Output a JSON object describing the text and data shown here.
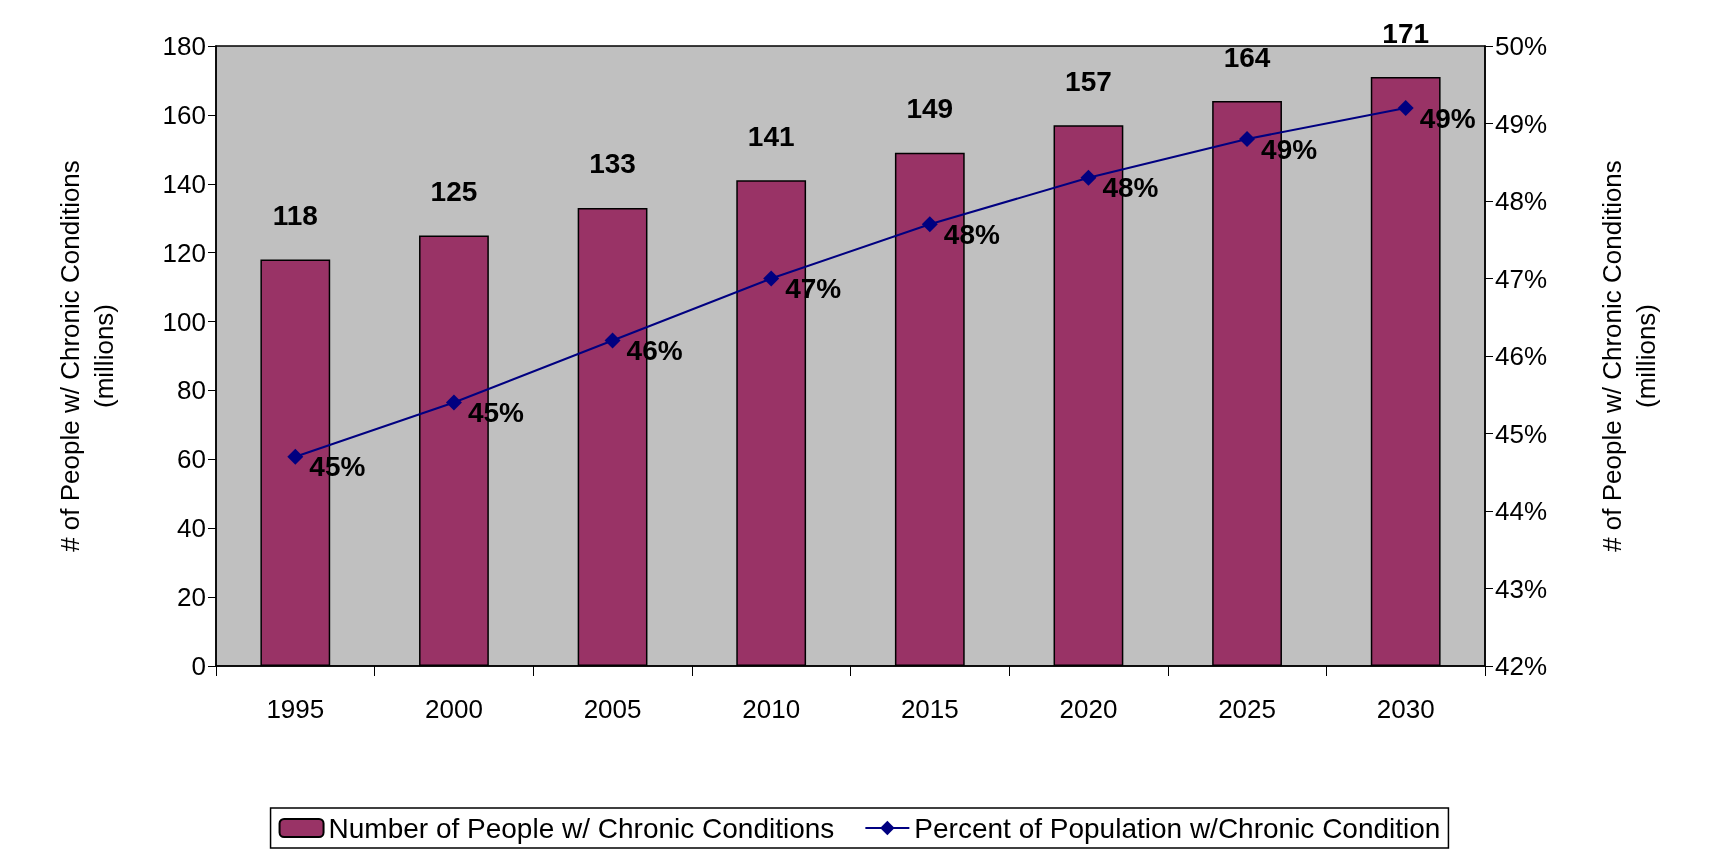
{
  "chart_data": {
    "type": "bar",
    "ylabel": "# of People w/ Chronic Conditions\n(millions)",
    "y2label": "# of People w/ Chronic Conditions\n(millions)",
    "categories": [
      "1995",
      "2000",
      "2005",
      "2010",
      "2015",
      "2020",
      "2025",
      "2030"
    ],
    "series": [
      {
        "name": "Number of People w/ Chronic Conditions",
        "color": "#993366",
        "values": [
          118,
          125,
          133,
          141,
          149,
          157,
          164,
          171
        ],
        "value_labels": [
          "118",
          "125",
          "133",
          "141",
          "149",
          "157",
          "164",
          "171"
        ]
      },
      {
        "name": "Percent of Population w/Chronic Condition",
        "type": "line",
        "axis": "y2",
        "color": "#000080",
        "values": [
          44.7,
          45.4,
          46.2,
          47.0,
          47.7,
          48.3,
          48.8,
          49.2
        ],
        "value_labels": [
          "45%",
          "45%",
          "46%",
          "47%",
          "48%",
          "48%",
          "49%",
          "49%"
        ]
      }
    ],
    "ylim": [
      0,
      180
    ],
    "yticks": [
      0,
      20,
      40,
      60,
      80,
      100,
      120,
      140,
      160,
      180
    ],
    "y2lim": [
      42,
      50
    ],
    "y2ticks": [
      {
        "value": 42,
        "label": "42%"
      },
      {
        "value": 43,
        "label": "43%"
      },
      {
        "value": 44,
        "label": "44%"
      },
      {
        "value": 45,
        "label": "45%"
      },
      {
        "value": 46,
        "label": "46%"
      },
      {
        "value": 47,
        "label": "47%"
      },
      {
        "value": 48,
        "label": "48%"
      },
      {
        "value": 49,
        "label": "49%"
      },
      {
        "value": 50,
        "label": "50%"
      }
    ],
    "grid": false,
    "legend": "bottom",
    "marker": "diamond",
    "line_style": "solid"
  }
}
